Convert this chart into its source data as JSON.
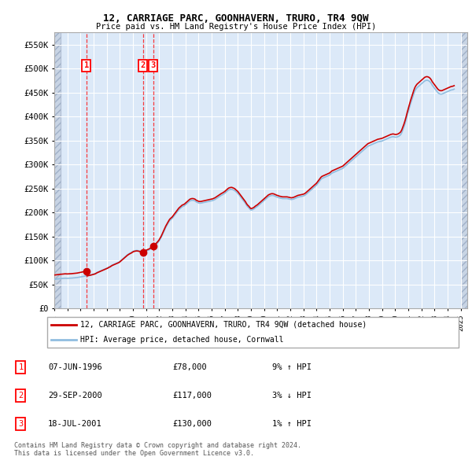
{
  "title": "12, CARRIAGE PARC, GOONHAVERN, TRURO, TR4 9QW",
  "subtitle": "Price paid vs. HM Land Registry's House Price Index (HPI)",
  "xlim_start": 1994.0,
  "xlim_end": 2025.5,
  "ylim": [
    0,
    575000
  ],
  "yticks": [
    0,
    50000,
    100000,
    150000,
    200000,
    250000,
    300000,
    350000,
    400000,
    450000,
    500000,
    550000
  ],
  "ytick_labels": [
    "£0",
    "£50K",
    "£100K",
    "£150K",
    "£200K",
    "£250K",
    "£300K",
    "£350K",
    "£400K",
    "£450K",
    "£500K",
    "£550K"
  ],
  "plot_bg_color": "#dce9f8",
  "hpi_color": "#90bde0",
  "price_color": "#cc0000",
  "transactions": [
    {
      "year": 1996.44,
      "price": 78000,
      "label": "1"
    },
    {
      "year": 2000.75,
      "price": 117000,
      "label": "2"
    },
    {
      "year": 2001.54,
      "price": 130000,
      "label": "3"
    }
  ],
  "legend_house_label": "12, CARRIAGE PARC, GOONHAVERN, TRURO, TR4 9QW (detached house)",
  "legend_hpi_label": "HPI: Average price, detached house, Cornwall",
  "table_rows": [
    {
      "num": "1",
      "date": "07-JUN-1996",
      "price": "£78,000",
      "hpi": "9% ↑ HPI"
    },
    {
      "num": "2",
      "date": "29-SEP-2000",
      "price": "£117,000",
      "hpi": "3% ↓ HPI"
    },
    {
      "num": "3",
      "date": "18-JUL-2001",
      "price": "£130,000",
      "hpi": "1% ↑ HPI"
    }
  ],
  "footnote": "Contains HM Land Registry data © Crown copyright and database right 2024.\nThis data is licensed under the Open Government Licence v3.0.",
  "hpi_data_x": [
    1994.0,
    1994.083,
    1994.167,
    1994.25,
    1994.333,
    1994.417,
    1994.5,
    1994.583,
    1994.667,
    1994.75,
    1994.833,
    1994.917,
    1995.0,
    1995.083,
    1995.167,
    1995.25,
    1995.333,
    1995.417,
    1995.5,
    1995.583,
    1995.667,
    1995.75,
    1995.833,
    1995.917,
    1996.0,
    1996.083,
    1996.167,
    1996.25,
    1996.333,
    1996.417,
    1996.5,
    1996.583,
    1996.667,
    1996.75,
    1996.833,
    1996.917,
    1997.0,
    1997.083,
    1997.167,
    1997.25,
    1997.333,
    1997.417,
    1997.5,
    1997.583,
    1997.667,
    1997.75,
    1997.833,
    1997.917,
    1998.0,
    1998.083,
    1998.167,
    1998.25,
    1998.333,
    1998.417,
    1998.5,
    1998.583,
    1998.667,
    1998.75,
    1998.833,
    1998.917,
    1999.0,
    1999.083,
    1999.167,
    1999.25,
    1999.333,
    1999.417,
    1999.5,
    1999.583,
    1999.667,
    1999.75,
    1999.833,
    1999.917,
    2000.0,
    2000.083,
    2000.167,
    2000.25,
    2000.333,
    2000.417,
    2000.5,
    2000.583,
    2000.667,
    2000.75,
    2000.833,
    2000.917,
    2001.0,
    2001.083,
    2001.167,
    2001.25,
    2001.333,
    2001.417,
    2001.5,
    2001.583,
    2001.667,
    2001.75,
    2001.833,
    2001.917,
    2002.0,
    2002.083,
    2002.167,
    2002.25,
    2002.333,
    2002.417,
    2002.5,
    2002.583,
    2002.667,
    2002.75,
    2002.833,
    2002.917,
    2003.0,
    2003.083,
    2003.167,
    2003.25,
    2003.333,
    2003.417,
    2003.5,
    2003.583,
    2003.667,
    2003.75,
    2003.833,
    2003.917,
    2004.0,
    2004.083,
    2004.167,
    2004.25,
    2004.333,
    2004.417,
    2004.5,
    2004.583,
    2004.667,
    2004.75,
    2004.833,
    2004.917,
    2005.0,
    2005.083,
    2005.167,
    2005.25,
    2005.333,
    2005.417,
    2005.5,
    2005.583,
    2005.667,
    2005.75,
    2005.833,
    2005.917,
    2006.0,
    2006.083,
    2006.167,
    2006.25,
    2006.333,
    2006.417,
    2006.5,
    2006.583,
    2006.667,
    2006.75,
    2006.833,
    2006.917,
    2007.0,
    2007.083,
    2007.167,
    2007.25,
    2007.333,
    2007.417,
    2007.5,
    2007.583,
    2007.667,
    2007.75,
    2007.833,
    2007.917,
    2008.0,
    2008.083,
    2008.167,
    2008.25,
    2008.333,
    2008.417,
    2008.5,
    2008.583,
    2008.667,
    2008.75,
    2008.833,
    2008.917,
    2009.0,
    2009.083,
    2009.167,
    2009.25,
    2009.333,
    2009.417,
    2009.5,
    2009.583,
    2009.667,
    2009.75,
    2009.833,
    2009.917,
    2010.0,
    2010.083,
    2010.167,
    2010.25,
    2010.333,
    2010.417,
    2010.5,
    2010.583,
    2010.667,
    2010.75,
    2010.833,
    2010.917,
    2011.0,
    2011.083,
    2011.167,
    2011.25,
    2011.333,
    2011.417,
    2011.5,
    2011.583,
    2011.667,
    2011.75,
    2011.833,
    2011.917,
    2012.0,
    2012.083,
    2012.167,
    2012.25,
    2012.333,
    2012.417,
    2012.5,
    2012.583,
    2012.667,
    2012.75,
    2012.833,
    2012.917,
    2013.0,
    2013.083,
    2013.167,
    2013.25,
    2013.333,
    2013.417,
    2013.5,
    2013.583,
    2013.667,
    2013.75,
    2013.833,
    2013.917,
    2014.0,
    2014.083,
    2014.167,
    2014.25,
    2014.333,
    2014.417,
    2014.5,
    2014.583,
    2014.667,
    2014.75,
    2014.833,
    2014.917,
    2015.0,
    2015.083,
    2015.167,
    2015.25,
    2015.333,
    2015.417,
    2015.5,
    2015.583,
    2015.667,
    2015.75,
    2015.833,
    2015.917,
    2016.0,
    2016.083,
    2016.167,
    2016.25,
    2016.333,
    2016.417,
    2016.5,
    2016.583,
    2016.667,
    2016.75,
    2016.833,
    2016.917,
    2017.0,
    2017.083,
    2017.167,
    2017.25,
    2017.333,
    2017.417,
    2017.5,
    2017.583,
    2017.667,
    2017.75,
    2017.833,
    2017.917,
    2018.0,
    2018.083,
    2018.167,
    2018.25,
    2018.333,
    2018.417,
    2018.5,
    2018.583,
    2018.667,
    2018.75,
    2018.833,
    2018.917,
    2019.0,
    2019.083,
    2019.167,
    2019.25,
    2019.333,
    2019.417,
    2019.5,
    2019.583,
    2019.667,
    2019.75,
    2019.833,
    2019.917,
    2020.0,
    2020.083,
    2020.167,
    2020.25,
    2020.333,
    2020.417,
    2020.5,
    2020.583,
    2020.667,
    2020.75,
    2020.833,
    2020.917,
    2021.0,
    2021.083,
    2021.167,
    2021.25,
    2021.333,
    2021.417,
    2021.5,
    2021.583,
    2021.667,
    2021.75,
    2021.833,
    2021.917,
    2022.0,
    2022.083,
    2022.167,
    2022.25,
    2022.333,
    2022.417,
    2022.5,
    2022.583,
    2022.667,
    2022.75,
    2022.833,
    2022.917,
    2023.0,
    2023.083,
    2023.167,
    2023.25,
    2023.333,
    2023.417,
    2023.5,
    2023.583,
    2023.667,
    2023.75,
    2023.833,
    2023.917,
    2024.0,
    2024.083,
    2024.167,
    2024.25,
    2024.333,
    2024.417,
    2024.5
  ],
  "hpi_data_y": [
    61000,
    61200,
    61400,
    61700,
    62000,
    62200,
    62400,
    62600,
    62800,
    63000,
    63200,
    63100,
    63000,
    63100,
    63200,
    63300,
    63500,
    63700,
    63800,
    64000,
    64300,
    64600,
    65000,
    65400,
    65800,
    66100,
    66500,
    67000,
    67500,
    68000,
    68500,
    69000,
    69500,
    70000,
    70600,
    71200,
    71800,
    72500,
    73500,
    75000,
    76000,
    77000,
    78000,
    79000,
    80000,
    81000,
    82000,
    83000,
    84000,
    85000,
    86500,
    87500,
    89000,
    90500,
    91500,
    92500,
    93500,
    94500,
    95500,
    96500,
    98000,
    100000,
    102000,
    104000,
    106000,
    108000,
    110000,
    112000,
    113500,
    115000,
    116000,
    117500,
    119000,
    120000,
    120500,
    121000,
    121000,
    120500,
    120000,
    119000,
    118500,
    118000,
    118500,
    119000,
    119500,
    120500,
    121500,
    122500,
    124000,
    125500,
    127000,
    129000,
    131000,
    133000,
    135500,
    138000,
    141000,
    145000,
    149000,
    154000,
    159000,
    164000,
    169000,
    173000,
    177000,
    181000,
    184000,
    186000,
    188000,
    191000,
    194000,
    197000,
    200000,
    203000,
    206000,
    208000,
    210000,
    212000,
    213000,
    214000,
    216000,
    218000,
    220000,
    222000,
    224000,
    225000,
    225500,
    225500,
    225000,
    224000,
    222000,
    221000,
    220000,
    219500,
    219500,
    220000,
    220500,
    221000,
    221500,
    222000,
    222500,
    223000,
    223500,
    224000,
    224500,
    225000,
    226000,
    227000,
    228500,
    230000,
    231500,
    233000,
    234500,
    236000,
    237000,
    238500,
    240000,
    242000,
    244000,
    246000,
    247500,
    248000,
    248500,
    248000,
    247000,
    246000,
    244000,
    242000,
    240000,
    237000,
    234000,
    231000,
    228000,
    225000,
    222000,
    219000,
    215000,
    212000,
    210000,
    207000,
    205000,
    205500,
    206500,
    208000,
    210000,
    211500,
    213000,
    215000,
    217000,
    219000,
    221000,
    223000,
    225000,
    227000,
    229000,
    231000,
    233000,
    234000,
    235000,
    235500,
    235500,
    235000,
    234000,
    233000,
    232000,
    231500,
    230500,
    230000,
    229500,
    229000,
    229000,
    229000,
    229000,
    229000,
    228500,
    228000,
    227500,
    227000,
    227500,
    228000,
    229000,
    230000,
    231000,
    232000,
    232500,
    233000,
    233500,
    234000,
    234500,
    235500,
    237000,
    239000,
    241000,
    243000,
    245000,
    247000,
    249000,
    251000,
    253000,
    255000,
    257000,
    260000,
    263000,
    266000,
    269000,
    271000,
    272000,
    273000,
    274000,
    275000,
    276000,
    277000,
    278000,
    280000,
    282000,
    283000,
    284000,
    285000,
    286000,
    287000,
    288000,
    289000,
    290000,
    291000,
    292000,
    294000,
    296000,
    298000,
    300000,
    302000,
    304000,
    306000,
    308000,
    310000,
    312000,
    314000,
    316000,
    318000,
    320000,
    322000,
    324000,
    326000,
    328000,
    330000,
    332000,
    334000,
    336000,
    338000,
    339000,
    340000,
    341000,
    342000,
    343000,
    344000,
    345000,
    346000,
    347000,
    347500,
    348000,
    348500,
    349000,
    350000,
    351000,
    352000,
    353000,
    354000,
    355000,
    356000,
    357000,
    357500,
    358000,
    357500,
    357000,
    357000,
    357500,
    358500,
    360000,
    362000,
    366000,
    372000,
    378000,
    385000,
    393000,
    402000,
    410000,
    418000,
    426000,
    433000,
    440000,
    447000,
    453000,
    457000,
    460000,
    462000,
    464000,
    466000,
    468000,
    470000,
    472000,
    474000,
    475000,
    475500,
    475000,
    474000,
    472000,
    469000,
    465000,
    462000,
    459000,
    456000,
    453000,
    450000,
    448000,
    447000,
    446500,
    447000,
    448000,
    449000,
    450000,
    451000,
    452000,
    453000,
    454000,
    455000,
    455500,
    456000,
    457000
  ]
}
